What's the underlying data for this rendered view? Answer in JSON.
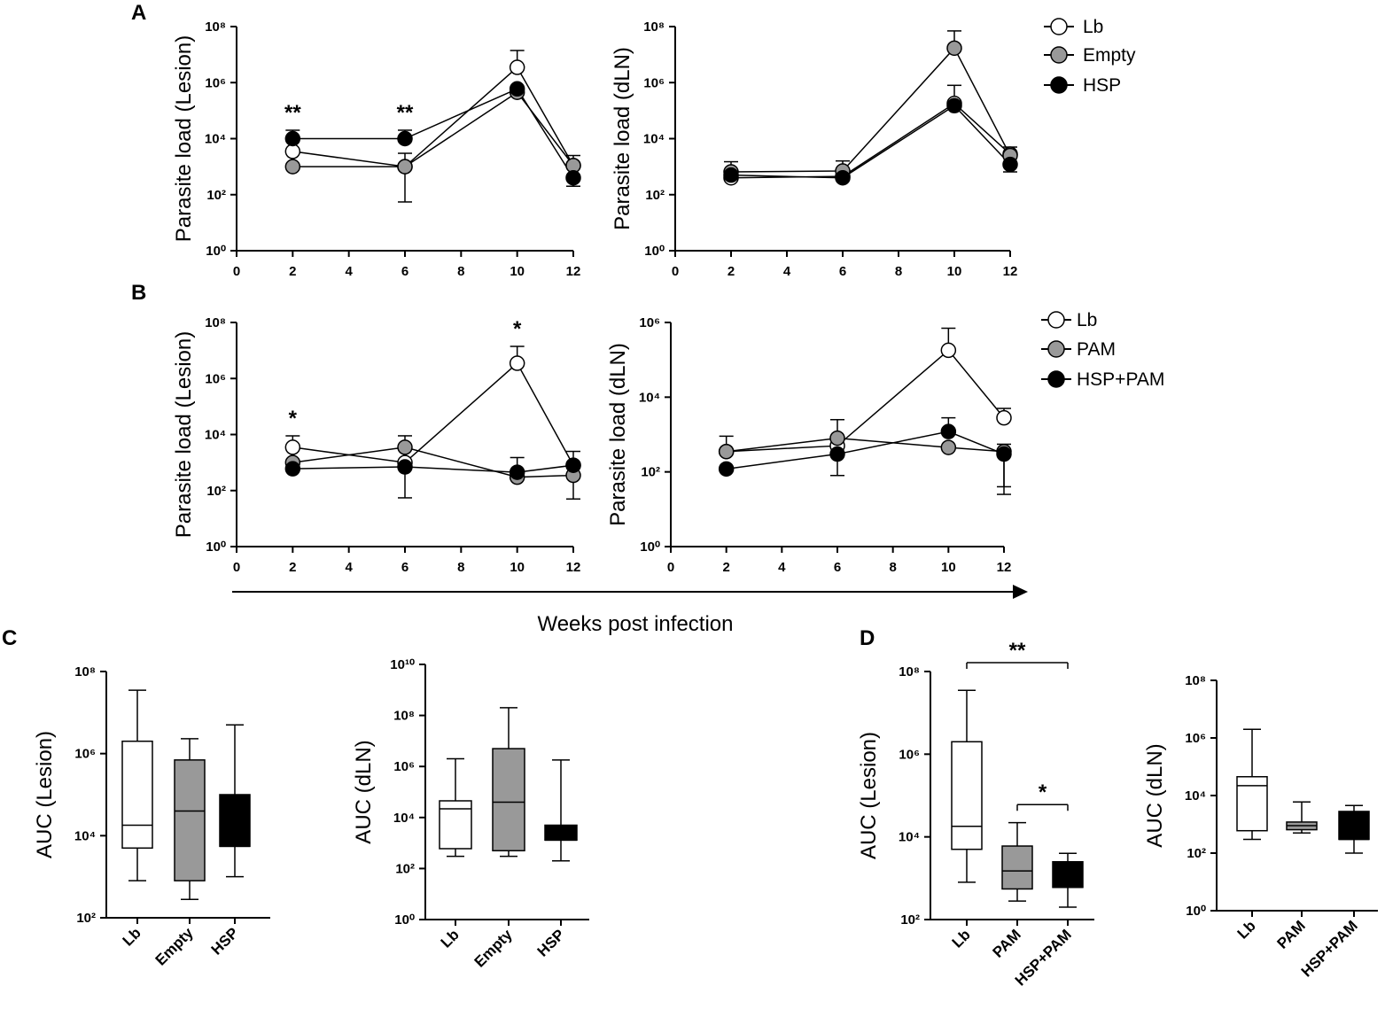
{
  "panel_labels": [
    "A",
    "B",
    "C",
    "D"
  ],
  "x_axis_title": "Weeks post infection",
  "legends": {
    "A": [
      {
        "name": "Lb",
        "color": "#ffffff"
      },
      {
        "name": "Empty",
        "color": "#999999"
      },
      {
        "name": "HSP",
        "color": "#000000"
      }
    ],
    "B": [
      {
        "name": "Lb",
        "color": "#ffffff"
      },
      {
        "name": "PAM",
        "color": "#999999"
      },
      {
        "name": "HSP+PAM",
        "color": "#000000"
      }
    ]
  },
  "chart_data": [
    {
      "id": "A-lesion",
      "type": "line",
      "panel": "A",
      "ylabel": "Parasite load (Lesion)",
      "yscale": "log10",
      "ylim_exp": [
        0,
        8
      ],
      "y_ticks": [
        "10⁰",
        "10²",
        "10⁴",
        "10⁶",
        "10⁸"
      ],
      "xlim": [
        0,
        12
      ],
      "x_ticks": [
        "0",
        "2",
        "4",
        "6",
        "8",
        "10",
        "12"
      ],
      "x": [
        2,
        6,
        10,
        12
      ],
      "series": [
        {
          "name": "Lb",
          "color": "#ffffff",
          "values": [
            3500,
            1000,
            3500000,
            1100
          ],
          "error_upper": [
            9000,
            3000,
            14000000,
            2500
          ],
          "error_lower": [
            null,
            55,
            null,
            null
          ]
        },
        {
          "name": "Empty",
          "color": "#999999",
          "values": [
            1000,
            1000,
            450000,
            1100
          ],
          "error_upper": [
            null,
            null,
            null,
            null
          ],
          "error_lower": [
            null,
            null,
            null,
            null
          ]
        },
        {
          "name": "HSP",
          "color": "#000000",
          "values": [
            10000,
            10000,
            600000,
            400
          ],
          "error_upper": [
            20000,
            20000,
            null,
            null
          ],
          "error_lower": [
            null,
            null,
            null,
            200
          ]
        }
      ],
      "annotations": [
        {
          "x": 2,
          "text": "**"
        },
        {
          "x": 6,
          "text": "**"
        }
      ]
    },
    {
      "id": "A-dln",
      "type": "line",
      "panel": "A",
      "ylabel": "Parasite load (dLN)",
      "yscale": "log10",
      "ylim_exp": [
        0,
        8
      ],
      "y_ticks": [
        "10⁰",
        "10²",
        "10⁴",
        "10⁶",
        "10⁸"
      ],
      "xlim": [
        0,
        12
      ],
      "x_ticks": [
        "0",
        "2",
        "4",
        "6",
        "8",
        "10",
        "12"
      ],
      "x": [
        2,
        6,
        10,
        12
      ],
      "series": [
        {
          "name": "Lb",
          "color": "#ffffff",
          "values": [
            400,
            450,
            180000,
            2800
          ],
          "error_upper": [
            1500,
            1600,
            800000,
            5000
          ],
          "error_lower": [
            null,
            null,
            null,
            null
          ]
        },
        {
          "name": "Empty",
          "color": "#999999",
          "values": [
            650,
            700,
            17000000,
            2500
          ],
          "error_upper": [
            null,
            null,
            70000000,
            null
          ],
          "error_lower": [
            null,
            null,
            null,
            null
          ]
        },
        {
          "name": "HSP",
          "color": "#000000",
          "values": [
            500,
            400,
            150000,
            1200
          ],
          "error_upper": [
            null,
            null,
            null,
            null
          ],
          "error_lower": [
            null,
            null,
            null,
            650
          ]
        }
      ],
      "annotations": []
    },
    {
      "id": "B-lesion",
      "type": "line",
      "panel": "B",
      "ylabel": "Parasite load (Lesion)",
      "yscale": "log10",
      "ylim_exp": [
        0,
        8
      ],
      "y_ticks": [
        "10⁰",
        "10²",
        "10⁴",
        "10⁶",
        "10⁸"
      ],
      "xlim": [
        0,
        12
      ],
      "x_ticks": [
        "0",
        "2",
        "4",
        "6",
        "8",
        "10",
        "12"
      ],
      "x": [
        2,
        6,
        10,
        12
      ],
      "series": [
        {
          "name": "Lb",
          "color": "#ffffff",
          "values": [
            3500,
            1000,
            3500000,
            800
          ],
          "error_upper": [
            9000,
            null,
            14000000,
            2500
          ],
          "error_lower": [
            null,
            55,
            null,
            null
          ]
        },
        {
          "name": "PAM",
          "color": "#999999",
          "values": [
            1000,
            3500,
            300,
            350
          ],
          "error_upper": [
            null,
            9000,
            null,
            null
          ],
          "error_lower": [
            null,
            null,
            null,
            50
          ]
        },
        {
          "name": "HSP+PAM",
          "color": "#000000",
          "values": [
            600,
            700,
            450,
            800
          ],
          "error_upper": [
            null,
            null,
            1500,
            null
          ],
          "error_lower": [
            null,
            null,
            null,
            null
          ]
        }
      ],
      "annotations": [
        {
          "x": 2,
          "text": "*"
        },
        {
          "x": 10,
          "text": "*"
        }
      ]
    },
    {
      "id": "B-dln",
      "type": "line",
      "panel": "B",
      "ylabel": "Parasite load (dLN)",
      "yscale": "log10",
      "ylim_exp": [
        0,
        6
      ],
      "y_ticks": [
        "10⁰",
        "10²",
        "10⁴",
        "10⁶"
      ],
      "xlim": [
        0,
        12
      ],
      "x_ticks": [
        "0",
        "2",
        "4",
        "6",
        "8",
        "10",
        "12"
      ],
      "x": [
        2,
        6,
        10,
        12
      ],
      "series": [
        {
          "name": "Lb",
          "color": "#ffffff",
          "values": [
            350,
            500,
            180000,
            2800
          ],
          "error_upper": [
            900,
            null,
            700000,
            5000
          ],
          "error_lower": [
            null,
            null,
            null,
            null
          ]
        },
        {
          "name": "PAM",
          "color": "#999999",
          "values": [
            350,
            800,
            450,
            350
          ],
          "error_upper": [
            null,
            2500,
            null,
            550
          ],
          "error_lower": [
            null,
            null,
            null,
            25
          ]
        },
        {
          "name": "HSP+PAM",
          "color": "#000000",
          "values": [
            120,
            300,
            1200,
            300
          ],
          "error_upper": [
            null,
            null,
            2800,
            null
          ],
          "error_lower": [
            null,
            80,
            null,
            40
          ]
        }
      ],
      "annotations": []
    },
    {
      "id": "C-lesion",
      "type": "box",
      "panel": "C",
      "ylabel": "AUC (Lesion)",
      "yscale": "log10",
      "ylim_exp": [
        2,
        8
      ],
      "y_ticks": [
        "10²",
        "10⁴",
        "10⁶",
        "10⁸"
      ],
      "categories": [
        "Lb",
        "Empty",
        "HSP"
      ],
      "boxes": [
        {
          "name": "Lb",
          "color": "#ffffff",
          "min": 800,
          "q1": 5000,
          "median": 18000,
          "q3": 2000000,
          "max": 35000000
        },
        {
          "name": "Empty",
          "color": "#999999",
          "min": 280,
          "q1": 800,
          "median": 40000,
          "q3": 700000,
          "max": 2300000
        },
        {
          "name": "HSP",
          "color": "#000000",
          "min": 1000,
          "q1": 5500,
          "median": 5500,
          "q3": 100000,
          "max": 5000000
        }
      ],
      "annotations": []
    },
    {
      "id": "C-dln",
      "type": "box",
      "panel": "C",
      "ylabel": "AUC (dLN)",
      "yscale": "log10",
      "ylim_exp": [
        0,
        10
      ],
      "y_ticks": [
        "10⁰",
        "10²",
        "10⁴",
        "10⁶",
        "10⁸",
        "10¹⁰"
      ],
      "categories": [
        "Lb",
        "Empty",
        "HSP"
      ],
      "boxes": [
        {
          "name": "Lb",
          "color": "#ffffff",
          "min": 300,
          "q1": 600,
          "median": 22000,
          "q3": 45000,
          "max": 2000000
        },
        {
          "name": "Empty",
          "color": "#999999",
          "min": 300,
          "q1": 500,
          "median": 40000,
          "q3": 5000000,
          "max": 200000000
        },
        {
          "name": "HSP",
          "color": "#000000",
          "min": 200,
          "q1": 1300,
          "median": 1300,
          "q3": 5000,
          "max": 1800000
        }
      ],
      "annotations": []
    },
    {
      "id": "D-lesion",
      "type": "box",
      "panel": "D",
      "ylabel": "AUC (Lesion)",
      "yscale": "log10",
      "ylim_exp": [
        2,
        8
      ],
      "y_ticks": [
        "10²",
        "10⁴",
        "10⁶",
        "10⁸"
      ],
      "categories": [
        "Lb",
        "PAM",
        "HSP+PAM"
      ],
      "boxes": [
        {
          "name": "Lb",
          "color": "#ffffff",
          "min": 800,
          "q1": 5000,
          "median": 18000,
          "q3": 2000000,
          "max": 35000000
        },
        {
          "name": "PAM",
          "color": "#999999",
          "min": 280,
          "q1": 550,
          "median": 1500,
          "q3": 6000,
          "max": 22000
        },
        {
          "name": "HSP+PAM",
          "color": "#000000",
          "min": 200,
          "q1": 600,
          "median": 600,
          "q3": 2500,
          "max": 4000
        }
      ],
      "annotations": [
        {
          "from": "Lb",
          "to": "HSP+PAM",
          "text": "**"
        },
        {
          "from": "PAM",
          "to": "HSP+PAM",
          "text": "*"
        }
      ]
    },
    {
      "id": "D-dln",
      "type": "box",
      "panel": "D",
      "ylabel": "AUC (dLN)",
      "yscale": "log10",
      "ylim_exp": [
        0,
        8
      ],
      "y_ticks": [
        "10⁰",
        "10²",
        "10⁴",
        "10⁶",
        "10⁸"
      ],
      "categories": [
        "Lb",
        "PAM",
        "HSP+PAM"
      ],
      "boxes": [
        {
          "name": "Lb",
          "color": "#ffffff",
          "min": 300,
          "q1": 600,
          "median": 22000,
          "q3": 45000,
          "max": 2000000
        },
        {
          "name": "PAM",
          "color": "#999999",
          "min": 500,
          "q1": 650,
          "median": 900,
          "q3": 1200,
          "max": 6000
        },
        {
          "name": "HSP+PAM",
          "color": "#000000",
          "min": 100,
          "q1": 300,
          "median": 300,
          "q3": 2800,
          "max": 4500
        }
      ],
      "annotations": []
    }
  ]
}
